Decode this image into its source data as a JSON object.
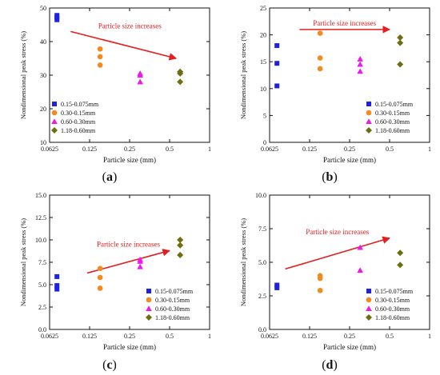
{
  "colors": {
    "s1": "#1f22e0",
    "s2": "#f4891d",
    "s3": "#ee18ee",
    "s4": "#6e6d0f",
    "arrow": "#e41e1e",
    "axis": "#111111"
  },
  "markers": {
    "s1": "square",
    "s2": "circle",
    "s3": "triangle-up",
    "s4": "diamond"
  },
  "chart_data": [
    {
      "panel_label_open": "(",
      "panel_letter": "a",
      "panel_label_close": ")",
      "type": "scatter",
      "xscale": "log",
      "xlabel": "Particle size (mm)",
      "ylabel": "Nondimensional peak stress (%)",
      "xticks": [
        0.0625,
        0.125,
        0.25,
        0.5,
        1
      ],
      "xtick_labels": [
        "0.0625",
        "0.125",
        "0.25",
        "0.5",
        "1"
      ],
      "xlim": [
        0.0625,
        1
      ],
      "ylim": [
        10,
        50
      ],
      "yticks": [
        10,
        20,
        30,
        40,
        50
      ],
      "ytick_labels": [
        "10",
        "20",
        "30",
        "40",
        "50"
      ],
      "annotation": {
        "text": "Particle size increases",
        "arrow_from": [
          0.09,
          43
        ],
        "arrow_to": [
          0.56,
          35
        ]
      },
      "legend_position": "bottom-left",
      "series": [
        {
          "name": "0.15-0.075mm",
          "x": [
            0.071,
            0.071,
            0.071
          ],
          "y": [
            46.5,
            47.2,
            47.8
          ]
        },
        {
          "name": "0.30-0.15mm",
          "x": [
            0.15,
            0.15,
            0.15
          ],
          "y": [
            33,
            35.5,
            37.8
          ]
        },
        {
          "name": "0.60-0.30mm",
          "x": [
            0.3,
            0.3,
            0.3
          ],
          "y": [
            28,
            30,
            30.5
          ]
        },
        {
          "name": "1.18-0.60mm",
          "x": [
            0.6,
            0.6,
            0.6
          ],
          "y": [
            28,
            30.5,
            31
          ]
        }
      ]
    },
    {
      "panel_label_open": "(",
      "panel_letter": "b",
      "panel_label_close": ")",
      "type": "scatter",
      "xscale": "log",
      "xlabel": "Particle size (mm)",
      "ylabel": "Nondimensional peak stress (%)",
      "xticks": [
        0.0625,
        0.125,
        0.25,
        0.5,
        1
      ],
      "xtick_labels": [
        "0.0625",
        "0.125",
        "0.25",
        "0.5",
        "1"
      ],
      "xlim": [
        0.0625,
        1
      ],
      "ylim": [
        0,
        25
      ],
      "yticks": [
        0,
        5,
        10,
        15,
        20,
        25
      ],
      "ytick_labels": [
        "0",
        "5",
        "10",
        "15",
        "20",
        "25"
      ],
      "annotation": {
        "text": "Particle size increases",
        "arrow_from": [
          0.105,
          21
        ],
        "arrow_to": [
          0.5,
          21
        ]
      },
      "legend_position": "bottom-right",
      "series": [
        {
          "name": "0.15-0.075mm",
          "x": [
            0.071,
            0.071,
            0.071
          ],
          "y": [
            10.5,
            14.7,
            18
          ]
        },
        {
          "name": "0.30-0.15mm",
          "x": [
            0.15,
            0.15,
            0.15
          ],
          "y": [
            13.7,
            15.7,
            20.3
          ]
        },
        {
          "name": "0.60-0.30mm",
          "x": [
            0.3,
            0.3,
            0.3
          ],
          "y": [
            13.2,
            14.5,
            15.5
          ]
        },
        {
          "name": "1.18-0.60mm",
          "x": [
            0.6,
            0.6,
            0.6
          ],
          "y": [
            14.5,
            18.5,
            19.5
          ]
        }
      ]
    },
    {
      "panel_label_open": "(",
      "panel_letter": "c",
      "panel_label_close": ")",
      "type": "scatter",
      "xscale": "log",
      "xlabel": "Particle size (mm)",
      "ylabel": "Nondimensional peak stress (%)",
      "xticks": [
        0.0625,
        0.125,
        0.25,
        0.5,
        1
      ],
      "xtick_labels": [
        "0.0625",
        "0.125",
        "0.25",
        "0.5",
        "1"
      ],
      "xlim": [
        0.0625,
        1
      ],
      "ylim": [
        0,
        15
      ],
      "yticks": [
        0,
        2.5,
        5,
        7.5,
        10,
        12.5,
        15
      ],
      "ytick_labels": [
        "0.0",
        "2.5",
        "5.0",
        "7.5",
        "10.0",
        "12.5",
        "15.0"
      ],
      "annotation": {
        "text": "Particle size increases",
        "arrow_from": [
          0.12,
          6.3
        ],
        "arrow_to": [
          0.5,
          8.8
        ]
      },
      "legend_position": "bottom-right",
      "series": [
        {
          "name": "0.15-0.075mm",
          "x": [
            0.071,
            0.071,
            0.071
          ],
          "y": [
            4.5,
            4.9,
            5.9
          ]
        },
        {
          "name": "0.30-0.15mm",
          "x": [
            0.15,
            0.15,
            0.15
          ],
          "y": [
            4.6,
            5.8,
            6.8
          ]
        },
        {
          "name": "0.60-0.30mm",
          "x": [
            0.3,
            0.3,
            0.3
          ],
          "y": [
            7,
            7.6,
            7.8
          ]
        },
        {
          "name": "1.18-0.60mm",
          "x": [
            0.6,
            0.6,
            0.6
          ],
          "y": [
            8.3,
            9.4,
            10
          ]
        }
      ]
    },
    {
      "panel_label_open": "(",
      "panel_letter": "d",
      "panel_label_close": ")",
      "type": "scatter",
      "xscale": "log",
      "xlabel": "Particle size (mm)",
      "ylabel": "Nondimensional peak stress (%)",
      "xticks": [
        0.0625,
        0.125,
        0.25,
        0.5,
        1
      ],
      "xtick_labels": [
        "0.0625",
        "0.125",
        "0.25",
        "0.5",
        "1"
      ],
      "xlim": [
        0.0625,
        1
      ],
      "ylim": [
        0,
        10
      ],
      "yticks": [
        0,
        2.5,
        5,
        7.5,
        10
      ],
      "ytick_labels": [
        "0.0",
        "2.5",
        "5.0",
        "7.5",
        "10.0"
      ],
      "annotation": {
        "text": "Particle size increases",
        "arrow_from": [
          0.082,
          4.5
        ],
        "arrow_to": [
          0.5,
          6.8
        ]
      },
      "legend_position": "bottom-right",
      "series": [
        {
          "name": "0.15-0.075mm",
          "x": [
            0.071,
            0.071
          ],
          "y": [
            3.1,
            3.3
          ]
        },
        {
          "name": "0.30-0.15mm",
          "x": [
            0.15,
            0.15,
            0.15
          ],
          "y": [
            2.9,
            3.8,
            4
          ]
        },
        {
          "name": "0.60-0.30mm",
          "x": [
            0.3,
            0.3
          ],
          "y": [
            4.4,
            6.1
          ]
        },
        {
          "name": "1.18-0.60mm",
          "x": [
            0.6,
            0.6
          ],
          "y": [
            4.8,
            5.7
          ]
        }
      ]
    }
  ]
}
